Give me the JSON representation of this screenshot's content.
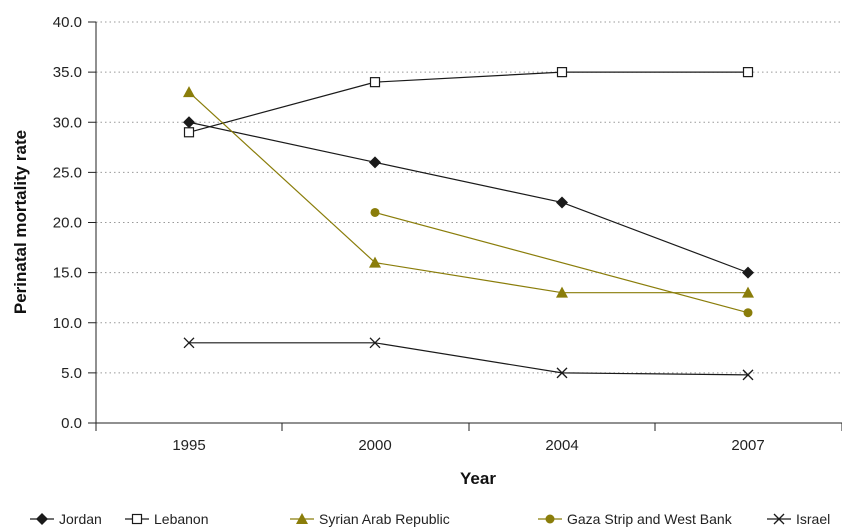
{
  "chart_data": {
    "type": "line",
    "xlabel": "Year",
    "ylabel": "Perinatal mortality rate",
    "categories": [
      "1995",
      "2000",
      "2004",
      "2007"
    ],
    "y_ticks": [
      "0.0",
      "5.0",
      "10.0",
      "15.0",
      "20.0",
      "25.0",
      "30.0",
      "35.0",
      "40.0"
    ],
    "ylim": [
      0,
      40
    ],
    "grid": "horizontal dotted",
    "legend_position": "bottom",
    "series": [
      {
        "name": "Jordan",
        "values": [
          30,
          26,
          22,
          15
        ],
        "color": "#1a1a1a",
        "marker": "diamond"
      },
      {
        "name": "Lebanon",
        "values": [
          29,
          34,
          35,
          35
        ],
        "color": "#1a1a1a",
        "marker": "square-open"
      },
      {
        "name": "Syrian Arab Republic",
        "values": [
          33,
          16,
          13,
          13
        ],
        "color": "#8a7d0a",
        "marker": "triangle"
      },
      {
        "name": "Gaza Strip and West Bank",
        "values": [
          null,
          21,
          null,
          11
        ],
        "color": "#8a7d0a",
        "marker": "circle"
      },
      {
        "name": "Israel",
        "values": [
          8,
          8,
          5,
          4.8
        ],
        "color": "#1a1a1a",
        "marker": "x"
      }
    ]
  }
}
